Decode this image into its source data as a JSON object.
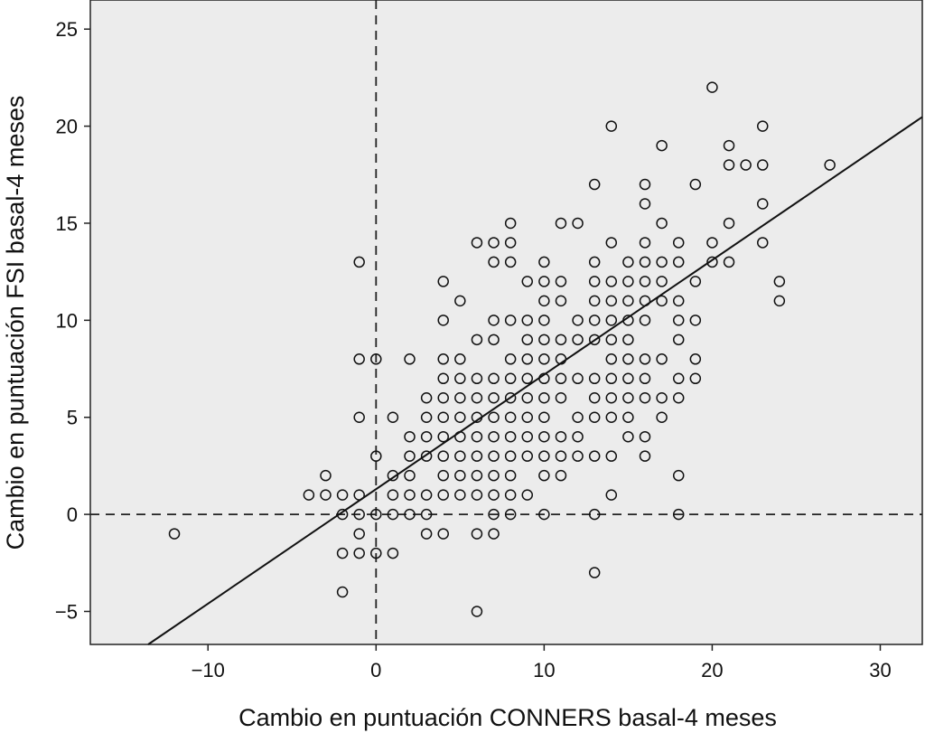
{
  "chart_data": {
    "type": "scatter",
    "title": "",
    "xlabel": "Cambio en puntuación CONNERS basal-4 meses",
    "ylabel": "Cambio en puntuación FSI basal-4 meses",
    "xlim": [
      -17,
      32.5
    ],
    "ylim": [
      -6.7,
      26.5
    ],
    "x_ticks": [
      -10,
      0,
      10,
      20,
      30
    ],
    "y_ticks": [
      -5,
      0,
      5,
      10,
      15,
      20,
      25
    ],
    "x_tick_labels": [
      "−10",
      "0",
      "10",
      "20",
      "30"
    ],
    "y_tick_labels": [
      "−5",
      "0",
      "5",
      "10",
      "15",
      "20",
      "25"
    ],
    "grid": false,
    "background_color": "#ececec",
    "reference_lines": [
      {
        "orientation": "vertical",
        "value": 0,
        "style": "dashed"
      },
      {
        "orientation": "horizontal",
        "value": 0,
        "style": "dashed"
      }
    ],
    "fit_line": {
      "type": "linear",
      "slope": 0.59,
      "intercept": 1.3
    },
    "marker": "open-circle",
    "points": [
      [
        -12,
        -1
      ],
      [
        -4,
        1
      ],
      [
        -3,
        2
      ],
      [
        -3,
        1
      ],
      [
        -2,
        1
      ],
      [
        -2,
        0
      ],
      [
        -2,
        -2
      ],
      [
        -2,
        -4
      ],
      [
        -1,
        13
      ],
      [
        -1,
        8
      ],
      [
        -1,
        5
      ],
      [
        -1,
        1
      ],
      [
        -1,
        0
      ],
      [
        -1,
        -1
      ],
      [
        -1,
        -2
      ],
      [
        0,
        8
      ],
      [
        0,
        3
      ],
      [
        0,
        0
      ],
      [
        0,
        -2
      ],
      [
        1,
        5
      ],
      [
        1,
        2
      ],
      [
        1,
        1
      ],
      [
        1,
        0
      ],
      [
        1,
        -2
      ],
      [
        2,
        8
      ],
      [
        2,
        4
      ],
      [
        2,
        3
      ],
      [
        2,
        2
      ],
      [
        2,
        1
      ],
      [
        2,
        0
      ],
      [
        3,
        6
      ],
      [
        3,
        5
      ],
      [
        3,
        4
      ],
      [
        3,
        3
      ],
      [
        3,
        1
      ],
      [
        3,
        0
      ],
      [
        3,
        -1
      ],
      [
        4,
        12
      ],
      [
        4,
        10
      ],
      [
        4,
        8
      ],
      [
        4,
        7
      ],
      [
        4,
        6
      ],
      [
        4,
        5
      ],
      [
        4,
        4
      ],
      [
        4,
        3
      ],
      [
        4,
        2
      ],
      [
        4,
        1
      ],
      [
        4,
        -1
      ],
      [
        5,
        11
      ],
      [
        5,
        8
      ],
      [
        5,
        7
      ],
      [
        5,
        6
      ],
      [
        5,
        5
      ],
      [
        5,
        4
      ],
      [
        5,
        3
      ],
      [
        5,
        2
      ],
      [
        5,
        1
      ],
      [
        6,
        14
      ],
      [
        6,
        9
      ],
      [
        6,
        7
      ],
      [
        6,
        6
      ],
      [
        6,
        5
      ],
      [
        6,
        4
      ],
      [
        6,
        3
      ],
      [
        6,
        2
      ],
      [
        6,
        1
      ],
      [
        6,
        -1
      ],
      [
        6,
        -5
      ],
      [
        7,
        14
      ],
      [
        7,
        13
      ],
      [
        7,
        10
      ],
      [
        7,
        9
      ],
      [
        7,
        7
      ],
      [
        7,
        6
      ],
      [
        7,
        5
      ],
      [
        7,
        4
      ],
      [
        7,
        3
      ],
      [
        7,
        2
      ],
      [
        7,
        1
      ],
      [
        7,
        0
      ],
      [
        7,
        -1
      ],
      [
        8,
        15
      ],
      [
        8,
        14
      ],
      [
        8,
        13
      ],
      [
        8,
        10
      ],
      [
        8,
        8
      ],
      [
        8,
        7
      ],
      [
        8,
        6
      ],
      [
        8,
        5
      ],
      [
        8,
        4
      ],
      [
        8,
        3
      ],
      [
        8,
        2
      ],
      [
        8,
        1
      ],
      [
        8,
        0
      ],
      [
        9,
        12
      ],
      [
        9,
        10
      ],
      [
        9,
        9
      ],
      [
        9,
        8
      ],
      [
        9,
        7
      ],
      [
        9,
        6
      ],
      [
        9,
        5
      ],
      [
        9,
        4
      ],
      [
        9,
        3
      ],
      [
        9,
        1
      ],
      [
        10,
        13
      ],
      [
        10,
        12
      ],
      [
        10,
        11
      ],
      [
        10,
        10
      ],
      [
        10,
        9
      ],
      [
        10,
        8
      ],
      [
        10,
        7
      ],
      [
        10,
        6
      ],
      [
        10,
        5
      ],
      [
        10,
        4
      ],
      [
        10,
        3
      ],
      [
        10,
        2
      ],
      [
        10,
        0
      ],
      [
        11,
        15
      ],
      [
        11,
        12
      ],
      [
        11,
        11
      ],
      [
        11,
        9
      ],
      [
        11,
        8
      ],
      [
        11,
        7
      ],
      [
        11,
        6
      ],
      [
        11,
        4
      ],
      [
        11,
        3
      ],
      [
        11,
        2
      ],
      [
        12,
        15
      ],
      [
        12,
        10
      ],
      [
        12,
        9
      ],
      [
        12,
        7
      ],
      [
        12,
        5
      ],
      [
        12,
        4
      ],
      [
        12,
        3
      ],
      [
        13,
        17
      ],
      [
        13,
        13
      ],
      [
        13,
        12
      ],
      [
        13,
        11
      ],
      [
        13,
        10
      ],
      [
        13,
        9
      ],
      [
        13,
        7
      ],
      [
        13,
        6
      ],
      [
        13,
        5
      ],
      [
        13,
        3
      ],
      [
        13,
        0
      ],
      [
        13,
        -3
      ],
      [
        14,
        20
      ],
      [
        14,
        14
      ],
      [
        14,
        12
      ],
      [
        14,
        11
      ],
      [
        14,
        10
      ],
      [
        14,
        9
      ],
      [
        14,
        8
      ],
      [
        14,
        7
      ],
      [
        14,
        6
      ],
      [
        14,
        5
      ],
      [
        14,
        3
      ],
      [
        14,
        1
      ],
      [
        15,
        13
      ],
      [
        15,
        12
      ],
      [
        15,
        11
      ],
      [
        15,
        10
      ],
      [
        15,
        9
      ],
      [
        15,
        8
      ],
      [
        15,
        7
      ],
      [
        15,
        6
      ],
      [
        15,
        5
      ],
      [
        15,
        4
      ],
      [
        16,
        17
      ],
      [
        16,
        16
      ],
      [
        16,
        14
      ],
      [
        16,
        13
      ],
      [
        16,
        12
      ],
      [
        16,
        11
      ],
      [
        16,
        10
      ],
      [
        16,
        8
      ],
      [
        16,
        7
      ],
      [
        16,
        6
      ],
      [
        16,
        4
      ],
      [
        16,
        3
      ],
      [
        17,
        19
      ],
      [
        17,
        15
      ],
      [
        17,
        13
      ],
      [
        17,
        12
      ],
      [
        17,
        11
      ],
      [
        17,
        8
      ],
      [
        17,
        6
      ],
      [
        17,
        5
      ],
      [
        18,
        14
      ],
      [
        18,
        13
      ],
      [
        18,
        11
      ],
      [
        18,
        10
      ],
      [
        18,
        9
      ],
      [
        18,
        7
      ],
      [
        18,
        6
      ],
      [
        18,
        2
      ],
      [
        18,
        0
      ],
      [
        19,
        17
      ],
      [
        19,
        12
      ],
      [
        19,
        10
      ],
      [
        19,
        8
      ],
      [
        19,
        7
      ],
      [
        20,
        22
      ],
      [
        20,
        14
      ],
      [
        20,
        13
      ],
      [
        21,
        19
      ],
      [
        21,
        18
      ],
      [
        21,
        15
      ],
      [
        21,
        13
      ],
      [
        22,
        18
      ],
      [
        23,
        20
      ],
      [
        23,
        18
      ],
      [
        23,
        16
      ],
      [
        23,
        14
      ],
      [
        24,
        12
      ],
      [
        24,
        11
      ],
      [
        27,
        18
      ]
    ]
  }
}
